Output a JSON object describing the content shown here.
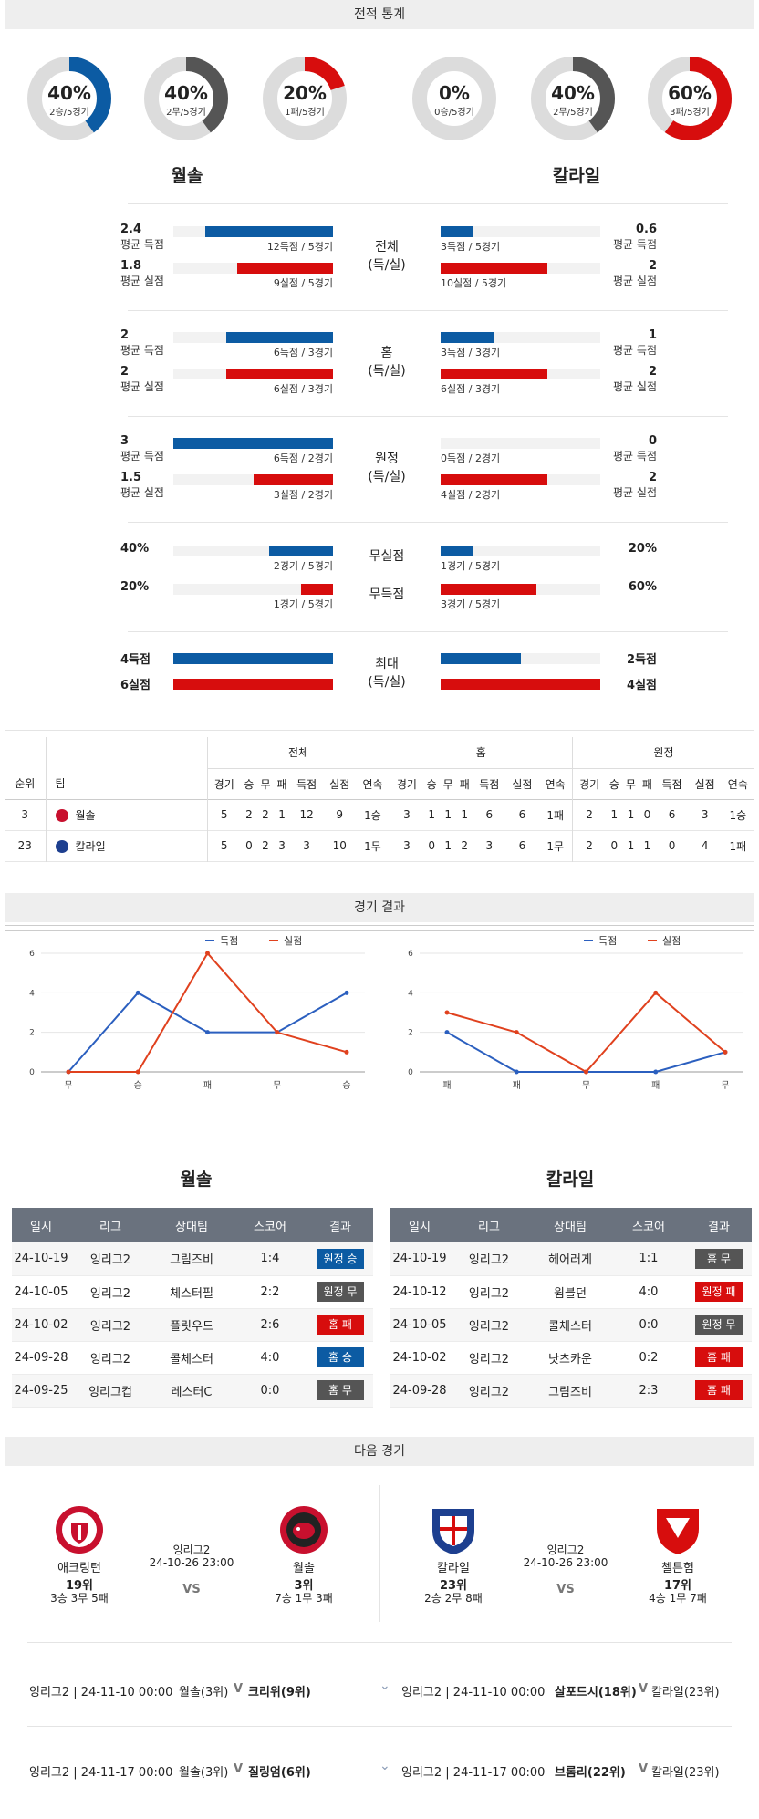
{
  "section_titles": {
    "stats": "전적 통계",
    "results": "경기 결과",
    "next": "다음 경기"
  },
  "colors": {
    "blue": "#0c5ba3",
    "red": "#d70d0d",
    "gray": "#555555",
    "donut_track": "#dcdcdc"
  },
  "teams": {
    "home": "월솔",
    "away": "칼라일"
  },
  "donuts": [
    {
      "pct": "40%",
      "sub": "2승/5경기",
      "value": 0.4,
      "color": "#0c5ba3"
    },
    {
      "pct": "40%",
      "sub": "2무/5경기",
      "value": 0.4,
      "color": "#555555"
    },
    {
      "pct": "20%",
      "sub": "1패/5경기",
      "value": 0.2,
      "color": "#d70d0d"
    },
    {
      "pct": "0%",
      "sub": "0승/5경기",
      "value": 0.0,
      "color": "#0c5ba3"
    },
    {
      "pct": "40%",
      "sub": "2무/5경기",
      "value": 0.4,
      "color": "#555555"
    },
    {
      "pct": "60%",
      "sub": "3패/5경기",
      "value": 0.6,
      "color": "#d70d0d"
    }
  ],
  "stat_groups": [
    {
      "center": [
        "전체",
        "(득/실)"
      ],
      "rows": [
        {
          "l_val": "2.4",
          "l_lab": "평균 득점",
          "l_note": "12득점 / 5경기",
          "l_frac": 0.8,
          "r_val": "0.6",
          "r_lab": "평균 득점",
          "r_note": "3득점 / 5경기",
          "r_frac": 0.2,
          "color": "blue"
        },
        {
          "l_val": "1.8",
          "l_lab": "평균 실점",
          "l_note": "9실점 / 5경기",
          "l_frac": 0.6,
          "r_val": "2",
          "r_lab": "평균 실점",
          "r_note": "10실점 / 5경기",
          "r_frac": 0.67,
          "color": "red"
        }
      ]
    },
    {
      "center": [
        "홈",
        "(득/실)"
      ],
      "rows": [
        {
          "l_val": "2",
          "l_lab": "평균 득점",
          "l_note": "6득점 / 3경기",
          "l_frac": 0.67,
          "r_val": "1",
          "r_lab": "평균 득점",
          "r_note": "3득점 / 3경기",
          "r_frac": 0.33,
          "color": "blue"
        },
        {
          "l_val": "2",
          "l_lab": "평균 실점",
          "l_note": "6실점 / 3경기",
          "l_frac": 0.67,
          "r_val": "2",
          "r_lab": "평균 실점",
          "r_note": "6실점 / 3경기",
          "r_frac": 0.67,
          "color": "red"
        }
      ]
    },
    {
      "center": [
        "원정",
        "(득/실)"
      ],
      "rows": [
        {
          "l_val": "3",
          "l_lab": "평균 득점",
          "l_note": "6득점 / 2경기",
          "l_frac": 1.0,
          "r_val": "0",
          "r_lab": "평균 득점",
          "r_note": "0득점 / 2경기",
          "r_frac": 0.0,
          "color": "blue"
        },
        {
          "l_val": "1.5",
          "l_lab": "평균 실점",
          "l_note": "3실점 / 2경기",
          "l_frac": 0.5,
          "r_val": "2",
          "r_lab": "평균 실점",
          "r_note": "4실점 / 2경기",
          "r_frac": 0.67,
          "color": "red"
        }
      ]
    }
  ],
  "clean": [
    {
      "center": "무실점",
      "l_val": "40%",
      "l_note": "2경기 / 5경기",
      "l_frac": 0.4,
      "r_val": "20%",
      "r_note": "1경기 / 5경기",
      "r_frac": 0.2,
      "color": "blue"
    },
    {
      "center": "무득점",
      "l_val": "20%",
      "l_note": "1경기 / 5경기",
      "l_frac": 0.2,
      "r_val": "60%",
      "r_note": "3경기 / 5경기",
      "r_frac": 0.6,
      "color": "red"
    }
  ],
  "max": {
    "center": [
      "최대",
      "(득/실)"
    ],
    "rows": [
      {
        "l_val": "4득점",
        "l_frac": 1.0,
        "r_val": "2득점",
        "r_frac": 0.5,
        "color": "blue"
      },
      {
        "l_val": "6실점",
        "l_frac": 1.0,
        "r_val": "4실점",
        "r_frac": 1.0,
        "color": "red"
      }
    ]
  },
  "rank_table": {
    "groups": [
      "전체",
      "홈",
      "원정"
    ],
    "head_left": [
      "순위",
      "팀"
    ],
    "cols": [
      "경기",
      "승",
      "무",
      "패",
      "득점",
      "실점",
      "연속"
    ],
    "rows": [
      {
        "rank": "3",
        "team": "월솔",
        "all": [
          "5",
          "2",
          "2",
          "1",
          "12",
          "9",
          "1승"
        ],
        "home": [
          "3",
          "1",
          "1",
          "1",
          "6",
          "6",
          "1패"
        ],
        "away": [
          "2",
          "1",
          "1",
          "0",
          "6",
          "3",
          "1승"
        ]
      },
      {
        "rank": "23",
        "team": "칼라일",
        "all": [
          "5",
          "0",
          "2",
          "3",
          "3",
          "10",
          "1무"
        ],
        "home": [
          "3",
          "0",
          "1",
          "2",
          "3",
          "6",
          "1무"
        ],
        "away": [
          "2",
          "0",
          "1",
          "1",
          "0",
          "4",
          "1패"
        ]
      }
    ]
  },
  "chart_data": [
    {
      "type": "line",
      "title": "",
      "categories": [
        "무",
        "승",
        "패",
        "무",
        "승"
      ],
      "ylim": [
        0,
        6
      ],
      "yticks": [
        0,
        2,
        4,
        6
      ],
      "legend_position": "top-right",
      "series": [
        {
          "name": "득점",
          "color": "#2b5fbf",
          "values": [
            0,
            4,
            2,
            2,
            4
          ]
        },
        {
          "name": "실점",
          "color": "#e0411e",
          "values": [
            0,
            0,
            6,
            2,
            1
          ]
        }
      ]
    },
    {
      "type": "line",
      "title": "",
      "categories": [
        "패",
        "패",
        "무",
        "패",
        "무"
      ],
      "ylim": [
        0,
        6
      ],
      "yticks": [
        0,
        2,
        4,
        6
      ],
      "legend_position": "top-right",
      "series": [
        {
          "name": "득점",
          "color": "#2b5fbf",
          "values": [
            2,
            0,
            0,
            0,
            1
          ]
        },
        {
          "name": "실점",
          "color": "#e0411e",
          "values": [
            3,
            2,
            0,
            4,
            1
          ]
        }
      ]
    }
  ],
  "results": {
    "headers": [
      "일시",
      "리그",
      "상대팀",
      "스코어",
      "결과"
    ],
    "home": [
      {
        "date": "24-10-19",
        "league": "잉리그2",
        "opp": "그림즈비",
        "score": "1:4",
        "result": "원정 승",
        "color": "blue"
      },
      {
        "date": "24-10-05",
        "league": "잉리그2",
        "opp": "체스터필",
        "score": "2:2",
        "result": "원정 무",
        "color": "gray"
      },
      {
        "date": "24-10-02",
        "league": "잉리그2",
        "opp": "플릿우드",
        "score": "2:6",
        "result": "홈 패",
        "color": "red"
      },
      {
        "date": "24-09-28",
        "league": "잉리그2",
        "opp": "콜체스터",
        "score": "4:0",
        "result": "홈 승",
        "color": "blue"
      },
      {
        "date": "24-09-25",
        "league": "잉리그컵",
        "opp": "레스터C",
        "score": "0:0",
        "result": "홈 무",
        "color": "gray"
      }
    ],
    "away": [
      {
        "date": "24-10-19",
        "league": "잉리그2",
        "opp": "헤어러게",
        "score": "1:1",
        "result": "홈 무",
        "color": "gray"
      },
      {
        "date": "24-10-12",
        "league": "잉리그2",
        "opp": "윔블던",
        "score": "4:0",
        "result": "원정 패",
        "color": "red"
      },
      {
        "date": "24-10-05",
        "league": "잉리그2",
        "opp": "콜체스터",
        "score": "0:0",
        "result": "원정 무",
        "color": "gray"
      },
      {
        "date": "24-10-02",
        "league": "잉리그2",
        "opp": "낫츠카운",
        "score": "0:2",
        "result": "홈 패",
        "color": "red"
      },
      {
        "date": "24-09-28",
        "league": "잉리그2",
        "opp": "그림즈비",
        "score": "2:3",
        "result": "홈 패",
        "color": "red"
      }
    ]
  },
  "next": {
    "left": {
      "t1": "애크링턴",
      "t1_rank": "19위",
      "t1_rec": "3승 3무 5패",
      "league": "잉리그2",
      "time": "24-10-26 23:00",
      "vs": "VS",
      "t2": "월솔",
      "t2_rank": "3위",
      "t2_rec": "7승 1무 3패"
    },
    "right": {
      "t1": "칼라일",
      "t1_rank": "23위",
      "t1_rec": "2승 2무 8패",
      "league": "잉리그2",
      "time": "24-10-26 23:00",
      "vs": "VS",
      "t2": "첼튼험",
      "t2_rank": "17위",
      "t2_rec": "4승 1무 7패"
    }
  },
  "upcoming": [
    {
      "l_info": "잉리그2 | 24-11-10 00:00",
      "l_match": "월솔(3위)",
      "l_vs": "V",
      "l_opp": "크리위(9위)",
      "r_info": "잉리그2 | 24-11-10 00:00",
      "r_match": "살포드시(18위)",
      "r_vs": "V",
      "r_opp": "칼라일(23위)"
    },
    {
      "l_info": "잉리그2 | 24-11-17 00:00",
      "l_match": "월솔(3위)",
      "l_vs": "V",
      "l_opp": "질링엄(6위)",
      "r_info": "잉리그2 | 24-11-17 00:00",
      "r_match": "브롬리(22위)",
      "r_vs": "V",
      "r_opp": "칼라일(23위)"
    }
  ]
}
